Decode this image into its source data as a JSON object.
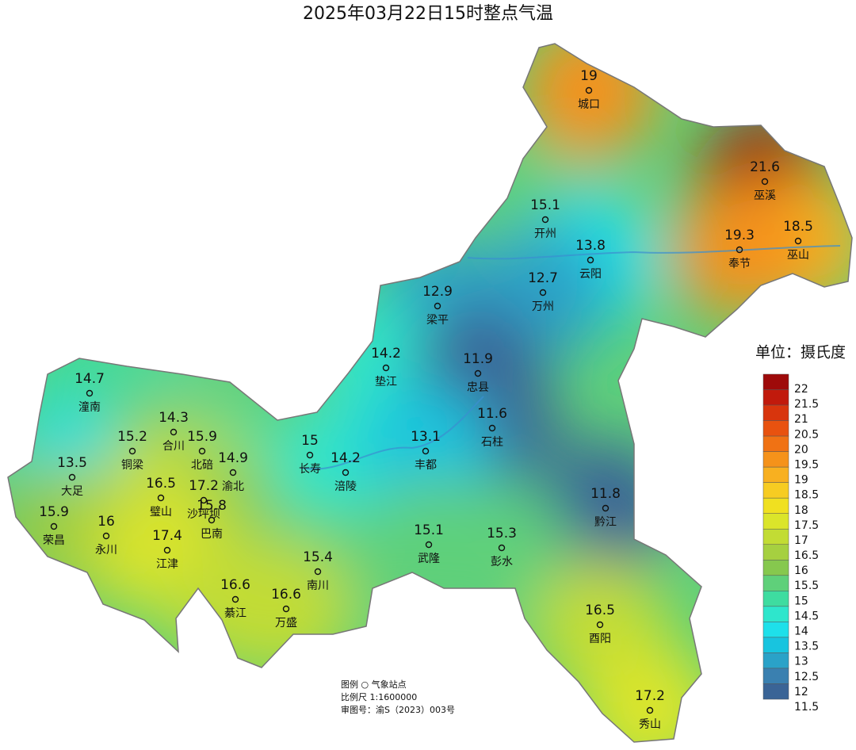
{
  "title": "2025年03月22日15时整点气温",
  "stations": [
    {
      "name": "城口",
      "value": 19
    },
    {
      "name": "巫溪",
      "value": 21.6
    },
    {
      "name": "开州",
      "value": 15.1
    },
    {
      "name": "巫山",
      "value": 18.5
    },
    {
      "name": "奉节",
      "value": 19.3
    },
    {
      "name": "云阳",
      "value": 13.8
    },
    {
      "name": "万州",
      "value": 12.7
    },
    {
      "name": "梁平",
      "value": 12.9
    },
    {
      "name": "垫江",
      "value": 14.2
    },
    {
      "name": "忠县",
      "value": 11.9
    },
    {
      "name": "潼南",
      "value": 14.7
    },
    {
      "name": "合川",
      "value": 14.3
    },
    {
      "name": "石柱",
      "value": 11.6
    },
    {
      "name": "铜梁",
      "value": 15.2
    },
    {
      "name": "北碚",
      "value": 15.9
    },
    {
      "name": "长寿",
      "value": 15
    },
    {
      "name": "渝北",
      "value": 14.9
    },
    {
      "name": "涪陵",
      "value": 14.2
    },
    {
      "name": "丰都",
      "value": 13.1
    },
    {
      "name": "大足",
      "value": 13.5
    },
    {
      "name": "璧山",
      "value": 16.5
    },
    {
      "name": "沙坪坝",
      "value": 17.2
    },
    {
      "name": "黔江",
      "value": 11.8
    },
    {
      "name": "荣昌",
      "value": 15.9
    },
    {
      "name": "永川",
      "value": 16
    },
    {
      "name": "巴南",
      "value": 15.8
    },
    {
      "name": "江津",
      "value": 17.4
    },
    {
      "name": "武隆",
      "value": 15.1
    },
    {
      "name": "彭水",
      "value": 15.3
    },
    {
      "name": "南川",
      "value": 15.4
    },
    {
      "name": "綦江",
      "value": 16.6
    },
    {
      "name": "万盛",
      "value": 16.6
    },
    {
      "name": "酉阳",
      "value": 16.5
    },
    {
      "name": "秀山",
      "value": 17.2
    }
  ],
  "legend": {
    "title": "单位：摄氏度",
    "levels": [
      22,
      21.5,
      21,
      20.5,
      20,
      19.5,
      19,
      18.5,
      18,
      17.5,
      17,
      16.5,
      16,
      15.5,
      15,
      14.5,
      14,
      13.5,
      13,
      12.5,
      12,
      11.5
    ],
    "colors": [
      "#9e0a0a",
      "#c11a0c",
      "#d8350d",
      "#e8520f",
      "#f07214",
      "#f5921a",
      "#f8b020",
      "#f7cc22",
      "#f0e020",
      "#dbe52a",
      "#c2dc34",
      "#a6d040",
      "#86c84e",
      "#5fd07a",
      "#3edca0",
      "#2ee6cc",
      "#1ee0ea",
      "#18c4df",
      "#2aa2c8",
      "#3a80b0",
      "#3a6496"
    ]
  },
  "notes": [
    "图例 ○ 气象站点",
    "比例尺 1:1600000",
    "审图号：渝S（2023）003号"
  ]
}
